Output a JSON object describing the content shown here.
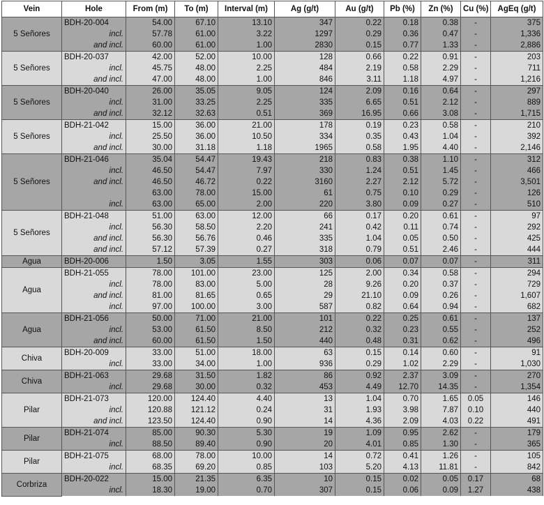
{
  "table": {
    "columns": [
      "Vein",
      "Hole",
      "From (m)",
      "To (m)",
      "Interval (m)",
      "Ag (g/t)",
      "Au (g/t)",
      "Pb (%)",
      "Zn (%)",
      "Cu (%)",
      "AgEq (g/t)"
    ],
    "shades": {
      "dark": "#a6a6a6",
      "light": "#d9d9d9"
    },
    "groups": [
      {
        "vein": "5 Señores",
        "shade": "dark",
        "rows": [
          [
            "BDH-20-004",
            "54.00",
            "67.10",
            "13.10",
            "347",
            "0.22",
            "0.18",
            "0.38",
            "-",
            "375"
          ],
          [
            "incl.",
            "57.78",
            "61.00",
            "3.22",
            "1297",
            "0.29",
            "0.36",
            "0.47",
            "-",
            "1,336"
          ],
          [
            "and incl.",
            "60.00",
            "61.00",
            "1.00",
            "2830",
            "0.15",
            "0.77",
            "1.33",
            "-",
            "2,886"
          ]
        ]
      },
      {
        "vein": "5 Señores",
        "shade": "light",
        "rows": [
          [
            "BDH-20-037",
            "42.00",
            "52.00",
            "10.00",
            "128",
            "0.66",
            "0.22",
            "0.91",
            "-",
            "203"
          ],
          [
            "incl.",
            "45.75",
            "48.00",
            "2.25",
            "484",
            "2.19",
            "0.58",
            "2.29",
            "-",
            "711"
          ],
          [
            "and incl.",
            "47.00",
            "48.00",
            "1.00",
            "846",
            "3.11",
            "1.18",
            "4.97",
            "-",
            "1,216"
          ]
        ]
      },
      {
        "vein": "5 Señores",
        "shade": "dark",
        "rows": [
          [
            "BDH-20-040",
            "26.00",
            "35.05",
            "9.05",
            "124",
            "2.09",
            "0.16",
            "0.64",
            "-",
            "297"
          ],
          [
            "incl.",
            "31.00",
            "33.25",
            "2.25",
            "335",
            "6.65",
            "0.51",
            "2.12",
            "-",
            "889"
          ],
          [
            "and incl.",
            "32.12",
            "32.63",
            "0.51",
            "369",
            "16.95",
            "0.66",
            "3.08",
            "-",
            "1,715"
          ]
        ]
      },
      {
        "vein": "5 Señores",
        "shade": "light",
        "rows": [
          [
            "BDH-21-042",
            "15.00",
            "36.00",
            "21.00",
            "178",
            "0.19",
            "0.23",
            "0.58",
            "-",
            "210"
          ],
          [
            "incl.",
            "25.50",
            "36.00",
            "10.50",
            "334",
            "0.35",
            "0.43",
            "1.04",
            "-",
            "392"
          ],
          [
            "and incl.",
            "30.00",
            "31.18",
            "1.18",
            "1965",
            "0.58",
            "1.95",
            "4.40",
            "-",
            "2,146"
          ]
        ]
      },
      {
        "vein": "5 Señores",
        "shade": "dark",
        "rows": [
          [
            "BDH-21-046",
            "35.04",
            "54.47",
            "19.43",
            "218",
            "0.83",
            "0.38",
            "1.10",
            "-",
            "312"
          ],
          [
            "incl.",
            "46.50",
            "54.47",
            "7.97",
            "330",
            "1.24",
            "0.51",
            "1.45",
            "-",
            "466"
          ],
          [
            "and incl.",
            "46.50",
            "46.72",
            "0.22",
            "3160",
            "2.27",
            "2.12",
            "5.72",
            "-",
            "3,501"
          ],
          [
            null,
            "63.00",
            "78.00",
            "15.00",
            "61",
            "0.75",
            "0.10",
            "0.29",
            "-",
            "126"
          ],
          [
            "incl.",
            "63.00",
            "65.00",
            "2.00",
            "220",
            "3.80",
            "0.09",
            "0.27",
            "-",
            "510"
          ]
        ]
      },
      {
        "vein": "5 Señores",
        "shade": "light",
        "rows": [
          [
            "BDH-21-048",
            "51.00",
            "63.00",
            "12.00",
            "66",
            "0.17",
            "0.20",
            "0.61",
            "-",
            "97"
          ],
          [
            "incl.",
            "56.30",
            "58.50",
            "2.20",
            "241",
            "0.42",
            "0.11",
            "0.74",
            "-",
            "292"
          ],
          [
            "and incl.",
            "56.30",
            "56.76",
            "0.46",
            "335",
            "1.04",
            "0.05",
            "0.50",
            "-",
            "425"
          ],
          [
            "and incl.",
            "57.12",
            "57.39",
            "0.27",
            "318",
            "0.79",
            "0.51",
            "2.46",
            "-",
            "444"
          ]
        ]
      },
      {
        "vein": "Agua",
        "shade": "dark",
        "rows": [
          [
            "BDH-20-006",
            "1.50",
            "3.05",
            "1.55",
            "303",
            "0.06",
            "0.07",
            "0.07",
            "-",
            "311"
          ]
        ]
      },
      {
        "vein": "Agua",
        "shade": "light",
        "rows": [
          [
            "BDH-21-055",
            "78.00",
            "101.00",
            "23.00",
            "125",
            "2.00",
            "0.34",
            "0.58",
            "-",
            "294"
          ],
          [
            "incl.",
            "78.00",
            "83.00",
            "5.00",
            "28",
            "9.26",
            "0.20",
            "0.37",
            "-",
            "729"
          ],
          [
            "and incl.",
            "81.00",
            "81.65",
            "0.65",
            "29",
            "21.10",
            "0.09",
            "0.26",
            "-",
            "1,607"
          ],
          [
            "incl.",
            "97.00",
            "100.00",
            "3.00",
            "587",
            "0.82",
            "0.64",
            "0.94",
            "-",
            "682"
          ]
        ]
      },
      {
        "vein": "Agua",
        "shade": "dark",
        "rows": [
          [
            "BDH-21-056",
            "50.00",
            "71.00",
            "21.00",
            "101",
            "0.22",
            "0.25",
            "0.61",
            "-",
            "137"
          ],
          [
            "incl.",
            "53.00",
            "61.50",
            "8.50",
            "212",
            "0.32",
            "0.23",
            "0.55",
            "-",
            "252"
          ],
          [
            "and incl.",
            "60.00",
            "61.50",
            "1.50",
            "440",
            "0.48",
            "0.31",
            "0.62",
            "-",
            "496"
          ]
        ]
      },
      {
        "vein": "Chiva",
        "shade": "light",
        "rows": [
          [
            "BDH-20-009",
            "33.00",
            "51.00",
            "18.00",
            "63",
            "0.15",
            "0.14",
            "0.60",
            "-",
            "91"
          ],
          [
            "incl.",
            "33.00",
            "34.00",
            "1.00",
            "936",
            "0.29",
            "1.02",
            "2.29",
            "-",
            "1,030"
          ]
        ]
      },
      {
        "vein": "Chiva",
        "shade": "dark",
        "rows": [
          [
            "BDH-21-063",
            "29.68",
            "31.50",
            "1.82",
            "86",
            "0.92",
            "2.37",
            "3.09",
            "-",
            "270"
          ],
          [
            "incl.",
            "29.68",
            "30.00",
            "0.32",
            "453",
            "4.49",
            "12.70",
            "14.35",
            "-",
            "1,354"
          ]
        ]
      },
      {
        "vein": "Pilar",
        "shade": "light",
        "rows": [
          [
            "BDH-21-073",
            "120.00",
            "124.40",
            "4.40",
            "13",
            "1.04",
            "0.70",
            "1.65",
            "0.05",
            "146"
          ],
          [
            "incl.",
            "120.88",
            "121.12",
            "0.24",
            "31",
            "1.93",
            "3.98",
            "7.87",
            "0.10",
            "440"
          ],
          [
            "and incl.",
            "123.50",
            "124.40",
            "0.90",
            "14",
            "4.36",
            "2.09",
            "4.03",
            "0.22",
            "491"
          ]
        ]
      },
      {
        "vein": "Pilar",
        "shade": "dark",
        "rows": [
          [
            "BDH-21-074",
            "85.00",
            "90.30",
            "5.30",
            "19",
            "1.09",
            "0.95",
            "2.62",
            "-",
            "179"
          ],
          [
            "incl.",
            "88.50",
            "89.40",
            "0.90",
            "20",
            "4.01",
            "0.85",
            "1.30",
            "-",
            "365"
          ]
        ]
      },
      {
        "vein": "Pilar",
        "shade": "light",
        "rows": [
          [
            "BDH-21-075",
            "68.00",
            "78.00",
            "10.00",
            "14",
            "0.72",
            "0.41",
            "1.26",
            "-",
            "105"
          ],
          [
            "incl.",
            "68.35",
            "69.20",
            "0.85",
            "103",
            "5.20",
            "4.13",
            "11.81",
            "-",
            "842"
          ]
        ]
      },
      {
        "vein": "Corbriza",
        "shade": "dark",
        "rows": [
          [
            "BDH-20-022",
            "15.00",
            "21.35",
            "6.35",
            "10",
            "0.15",
            "0.02",
            "0.05",
            "0.17",
            "68"
          ],
          [
            "incl.",
            "18.30",
            "19.00",
            "0.70",
            "307",
            "0.15",
            "0.06",
            "0.09",
            "1.27",
            "438"
          ]
        ]
      }
    ]
  }
}
